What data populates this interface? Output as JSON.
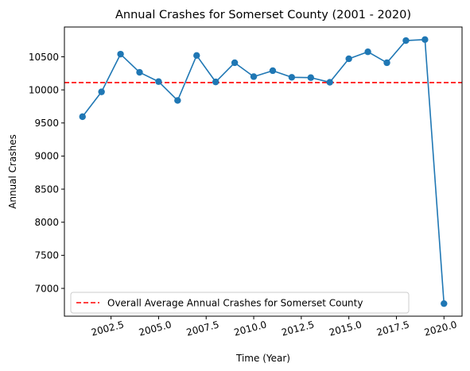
{
  "chart_data": {
    "type": "line",
    "title": "Annual Crashes for Somerset County (2001 - 2020)",
    "xlabel": "Time (Year)",
    "ylabel": "Annual Crashes",
    "xlim": [
      2000.05,
      2020.95
    ],
    "ylim": [
      6580,
      10950
    ],
    "x_ticks": [
      2002.5,
      2005.0,
      2007.5,
      2010.0,
      2012.5,
      2015.0,
      2017.5,
      2020.0
    ],
    "x_tick_labels": [
      "2002.5",
      "2005.0",
      "2007.5",
      "2010.0",
      "2012.5",
      "2015.0",
      "2017.5",
      "2020.0"
    ],
    "y_ticks": [
      7000,
      7500,
      8000,
      8500,
      9000,
      9500,
      10000,
      10500
    ],
    "y_tick_labels": [
      "7000",
      "7500",
      "8000",
      "8500",
      "9000",
      "9500",
      "10000",
      "10500"
    ],
    "grid": false,
    "legend_position": "lower-left",
    "series": [
      {
        "color": "#1f77b4",
        "marker": "circle",
        "x": [
          2001,
          2002,
          2003,
          2004,
          2005,
          2006,
          2007,
          2008,
          2009,
          2010,
          2011,
          2012,
          2013,
          2014,
          2015,
          2016,
          2017,
          2018,
          2019,
          2020
        ],
        "values": [
          9595,
          9970,
          10540,
          10265,
          10125,
          9840,
          10520,
          10120,
          10410,
          10200,
          10290,
          10190,
          10185,
          10115,
          10470,
          10575,
          10410,
          10745,
          10760,
          6770
        ]
      }
    ],
    "reference_lines": [
      {
        "name": "Overall Average Annual Crashes for Somerset County",
        "y": 10110,
        "color": "#ff0000",
        "style": "dashed"
      }
    ]
  }
}
